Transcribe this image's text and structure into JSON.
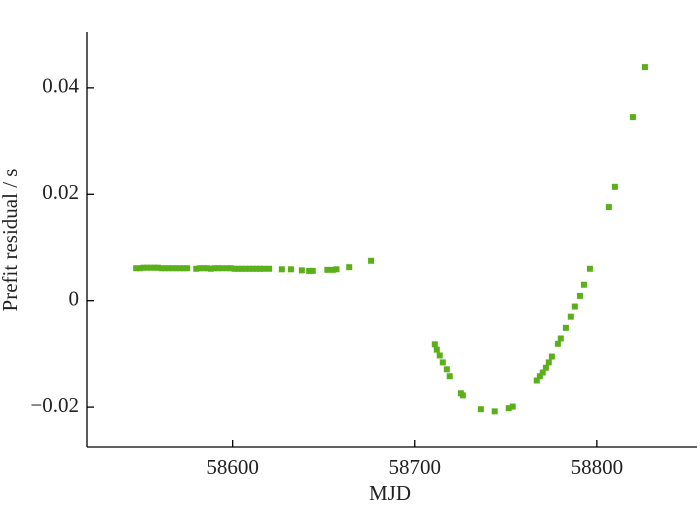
{
  "chart_data": {
    "type": "scatter",
    "xlabel": "MJD",
    "ylabel": "Prefit residual / s",
    "xlim": [
      58520,
      58855
    ],
    "ylim": [
      -0.0275,
      0.0505
    ],
    "xticks": [
      58600,
      58700,
      58800
    ],
    "yticks": [
      {
        "value": -0.02,
        "label": "−0.02"
      },
      0,
      0.02,
      0.04
    ],
    "color": "#5aaf1a",
    "x": [
      58547,
      58549,
      58551,
      58553,
      58555,
      58557,
      58559,
      58561,
      58563,
      58565,
      58567,
      58569,
      58571,
      58573,
      58575,
      58580,
      58582,
      58584,
      58586,
      58588,
      58590,
      58592,
      58594,
      58597,
      58599,
      58601,
      58603,
      58605,
      58607,
      58609,
      58611,
      58613,
      58615,
      58617,
      58620,
      58627,
      58632,
      58638,
      58642,
      58644,
      58652,
      58655,
      58657,
      58664,
      58676,
      58711,
      58712.1,
      58713.7,
      58715.4,
      58717.6,
      58719.2,
      58725.3,
      58726.4,
      58736.3,
      58743.9,
      58751.6,
      58753.8,
      58767,
      58768.7,
      58770.3,
      58772,
      58773.6,
      58775.3,
      58778.6,
      58780.2,
      58783,
      58785.7,
      58787.9,
      58790.7,
      58792.9,
      58796.2,
      58806.6,
      58809.9,
      58819.8,
      58826.4
    ],
    "values": [
      0.0061,
      0.0061,
      0.0062,
      0.0062,
      0.0062,
      0.0062,
      0.0062,
      0.0061,
      0.0061,
      0.0061,
      0.0061,
      0.0061,
      0.0061,
      0.0061,
      0.0061,
      0.006,
      0.0061,
      0.0061,
      0.0061,
      0.006,
      0.0061,
      0.0061,
      0.0061,
      0.0061,
      0.0061,
      0.006,
      0.006,
      0.006,
      0.006,
      0.006,
      0.006,
      0.006,
      0.006,
      0.006,
      0.006,
      0.0059,
      0.0059,
      0.0057,
      0.0056,
      0.0056,
      0.0058,
      0.0058,
      0.0059,
      0.0063,
      0.0075,
      -0.0082,
      -0.0092,
      -0.0103,
      -0.0116,
      -0.0129,
      -0.0142,
      -0.0174,
      -0.0178,
      -0.0204,
      -0.0208,
      -0.0202,
      -0.0199,
      -0.015,
      -0.0142,
      -0.0135,
      -0.0126,
      -0.0116,
      -0.0105,
      -0.0081,
      -0.0071,
      -0.0051,
      -0.003,
      -0.0011,
      0.0009,
      0.003,
      0.006,
      0.0176,
      0.0214,
      0.0345,
      0.0439
    ]
  }
}
